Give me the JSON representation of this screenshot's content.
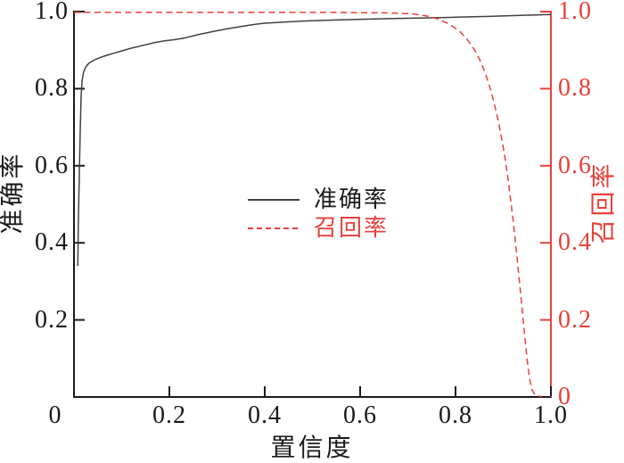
{
  "chart_data": {
    "type": "line",
    "title": "",
    "xlabel": "置信度",
    "ylabel_left": "准确率",
    "ylabel_right": "召回率",
    "xlim": [
      0,
      1.0
    ],
    "ylim_left": [
      0,
      1.0
    ],
    "ylim_right": [
      0,
      1.0
    ],
    "grid": false,
    "legend_position": "center",
    "origin_label": "0",
    "x_ticks": {
      "values": [
        0.2,
        0.4,
        0.6,
        0.8,
        1.0
      ],
      "labels": [
        "0.2",
        "0.4",
        "0.6",
        "0.8",
        "1.0"
      ]
    },
    "left_ticks": {
      "values": [
        0.2,
        0.4,
        0.6,
        0.8,
        1.0
      ],
      "labels": [
        "0.2",
        "0.4",
        "0.6",
        "0.8",
        "1.0"
      ]
    },
    "right_ticks": {
      "values": [
        0,
        0.2,
        0.4,
        0.6,
        0.8,
        1.0
      ],
      "labels": [
        "0",
        "0.2",
        "0.4",
        "0.6",
        "0.8",
        "1.0"
      ]
    },
    "colors": {
      "axis_black": "#1a1a1a",
      "curve_black": "#45403e",
      "accent_red": "#e8403a",
      "background": "#ffffff"
    },
    "legend": {
      "entries": [
        {
          "label": "准确率",
          "style": "solid",
          "color": "#45403e"
        },
        {
          "label": "召回率",
          "style": "dashed",
          "color": "#e8403a"
        }
      ]
    },
    "series": [
      {
        "name": "准确率",
        "axis": "left",
        "style": "solid",
        "color": "#45403e",
        "points": [
          [
            0.008,
            0.34
          ],
          [
            0.009,
            0.44
          ],
          [
            0.011,
            0.57
          ],
          [
            0.013,
            0.69
          ],
          [
            0.015,
            0.78
          ],
          [
            0.017,
            0.82
          ],
          [
            0.02,
            0.843
          ],
          [
            0.025,
            0.857
          ],
          [
            0.032,
            0.867
          ],
          [
            0.045,
            0.876
          ],
          [
            0.06,
            0.883
          ],
          [
            0.08,
            0.891
          ],
          [
            0.1,
            0.898
          ],
          [
            0.12,
            0.905
          ],
          [
            0.15,
            0.914
          ],
          [
            0.17,
            0.92
          ],
          [
            0.19,
            0.924
          ],
          [
            0.21,
            0.927
          ],
          [
            0.23,
            0.931
          ],
          [
            0.26,
            0.94
          ],
          [
            0.29,
            0.948
          ],
          [
            0.32,
            0.955
          ],
          [
            0.35,
            0.961
          ],
          [
            0.38,
            0.967
          ],
          [
            0.4,
            0.97
          ],
          [
            0.44,
            0.973
          ],
          [
            0.48,
            0.9755
          ],
          [
            0.52,
            0.977
          ],
          [
            0.57,
            0.979
          ],
          [
            0.62,
            0.9805
          ],
          [
            0.67,
            0.982
          ],
          [
            0.72,
            0.9832
          ],
          [
            0.77,
            0.9845
          ],
          [
            0.82,
            0.986
          ],
          [
            0.87,
            0.9875
          ],
          [
            0.92,
            0.9895
          ],
          [
            0.96,
            0.991
          ],
          [
            1.0,
            0.9925
          ]
        ]
      },
      {
        "name": "召回率",
        "axis": "right",
        "style": "dashed",
        "color": "#e8403a",
        "points": [
          [
            0.0,
            0.998
          ],
          [
            0.2,
            0.998
          ],
          [
            0.4,
            0.998
          ],
          [
            0.55,
            0.998
          ],
          [
            0.62,
            0.997
          ],
          [
            0.66,
            0.9965
          ],
          [
            0.7,
            0.995
          ],
          [
            0.72,
            0.9925
          ],
          [
            0.74,
            0.9885
          ],
          [
            0.76,
            0.982
          ],
          [
            0.78,
            0.9715
          ],
          [
            0.795,
            0.961
          ],
          [
            0.81,
            0.947
          ],
          [
            0.825,
            0.927
          ],
          [
            0.84,
            0.9
          ],
          [
            0.85,
            0.877
          ],
          [
            0.86,
            0.848
          ],
          [
            0.87,
            0.812
          ],
          [
            0.88,
            0.768
          ],
          [
            0.89,
            0.714
          ],
          [
            0.9,
            0.648
          ],
          [
            0.905,
            0.61
          ],
          [
            0.91,
            0.566
          ],
          [
            0.915,
            0.518
          ],
          [
            0.92,
            0.466
          ],
          [
            0.925,
            0.41
          ],
          [
            0.93,
            0.35
          ],
          [
            0.935,
            0.288
          ],
          [
            0.94,
            0.224
          ],
          [
            0.945,
            0.158
          ],
          [
            0.95,
            0.098
          ],
          [
            0.955,
            0.05
          ],
          [
            0.96,
            0.02
          ],
          [
            0.965,
            0.008
          ],
          [
            0.972,
            0.003
          ],
          [
            0.98,
            0.001
          ]
        ]
      }
    ]
  }
}
